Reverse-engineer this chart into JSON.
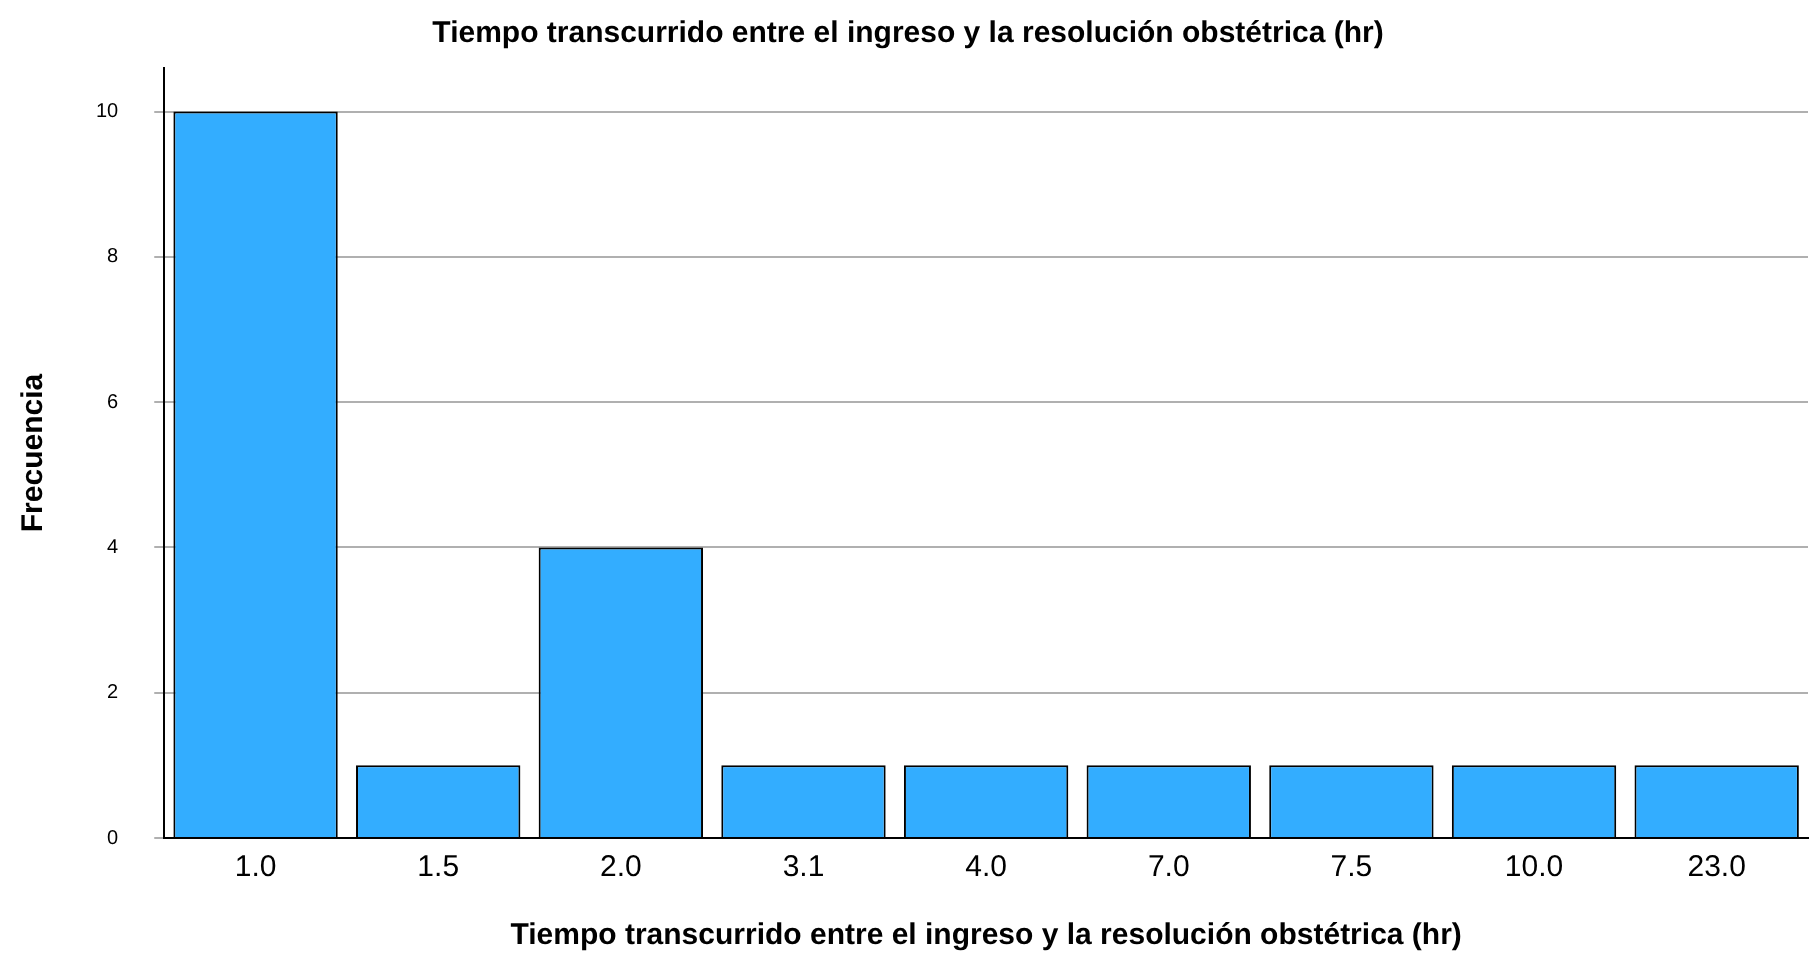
{
  "chart_data": {
    "type": "bar",
    "title": "Tiempo transcurrido entre el ingreso y la resolución obstétrica (hr)",
    "xlabel": "Tiempo transcurrido entre el ingreso y la resolución obstétrica (hr)",
    "ylabel": "Frecuencia",
    "categories": [
      "1.0",
      "1.5",
      "2.0",
      "3.1",
      "4.0",
      "7.0",
      "7.5",
      "10.0",
      "23.0"
    ],
    "values": [
      10,
      1,
      4,
      1,
      1,
      1,
      1,
      1,
      1
    ],
    "color": "#33adff",
    "ylim": [
      0,
      10.6
    ],
    "yticks": [
      0,
      2,
      4,
      6,
      8,
      10
    ],
    "grid": "y",
    "legend": false
  }
}
